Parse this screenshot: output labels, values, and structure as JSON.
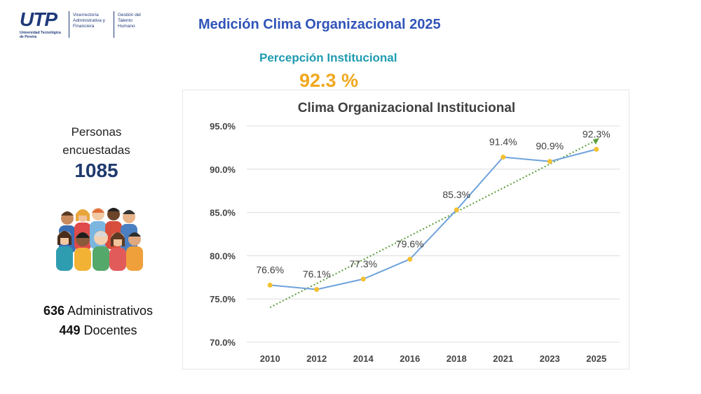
{
  "header": {
    "logo_text": "UTP",
    "logo_subtitle": "Universidad Tecnológica de Pereira",
    "logo_section_1": "Vicerrectoría Administrativa y Financiera",
    "logo_section_2": "Gestión del Talento Humano",
    "title": "Medición Clima Organizacional 2025",
    "subtitle": "Percepción Institucional",
    "headline_value": "92.3 %"
  },
  "summary": {
    "people_label": "Personas encuestadas",
    "people_total": "1085",
    "admin_count": "636",
    "admin_label": "Administrativos",
    "faculty_count": "449",
    "faculty_label": "Docentes"
  },
  "chart_data": {
    "type": "line",
    "title": "Clima Organizacional Institucional",
    "categories": [
      "2010",
      "2012",
      "2014",
      "2016",
      "2018",
      "2021",
      "2023",
      "2025"
    ],
    "series": [
      {
        "name": "Clima Organizacional",
        "values": [
          76.6,
          76.1,
          77.3,
          79.6,
          85.3,
          91.4,
          90.9,
          92.3
        ],
        "labels": [
          "76.6%",
          "76.1%",
          "77.3%",
          "79.6%",
          "85.3%",
          "91.4%",
          "90.9%",
          "92.3%"
        ]
      }
    ],
    "trendline": {
      "type": "linear",
      "style": "dotted",
      "color": "#5a9e3a"
    },
    "ylim": [
      70,
      95
    ],
    "yticks": [
      70,
      75,
      80,
      85,
      90,
      95
    ],
    "ytick_labels": [
      "70.0%",
      "75.0%",
      "80.0%",
      "85.0%",
      "90.0%",
      "95.0%"
    ],
    "xlabel": "",
    "ylabel": "",
    "grid": true,
    "colors": {
      "line": "#6fa3dc",
      "marker": "#f5c030",
      "grid": "#dcdcdc",
      "axis_text": "#444444"
    }
  }
}
